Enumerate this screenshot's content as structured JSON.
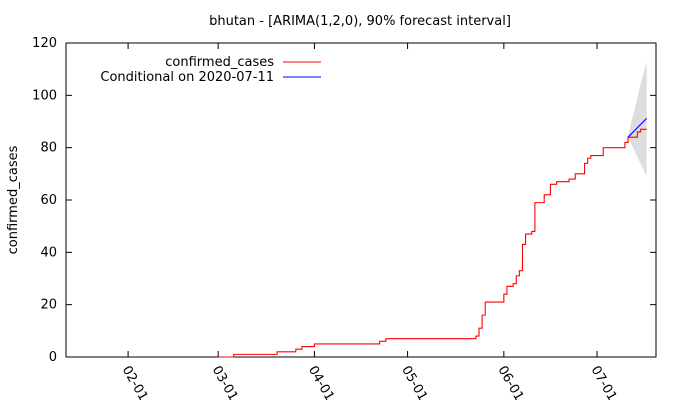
{
  "chart_data": {
    "type": "line",
    "title": "bhutan -  [ARIMA(1,2,0), 90% forecast interval]",
    "xlabel": "",
    "ylabel": "confirmed_cases",
    "ylim": [
      0,
      120
    ],
    "xlim": [
      "2020-01-12",
      "2020-07-20"
    ],
    "yticks": [
      0,
      20,
      40,
      60,
      80,
      100,
      120
    ],
    "xticks": [
      {
        "date": "2020-02-01",
        "label": "02-01"
      },
      {
        "date": "2020-03-01",
        "label": "03-01"
      },
      {
        "date": "2020-04-01",
        "label": "04-01"
      },
      {
        "date": "2020-05-01",
        "label": "05-01"
      },
      {
        "date": "2020-06-01",
        "label": "06-01"
      },
      {
        "date": "2020-07-01",
        "label": "07-01"
      }
    ],
    "legend": {
      "placement": "top-left"
    },
    "grid": false,
    "series": [
      {
        "name": "confirmed_cases",
        "color": "#ff0000",
        "step": true,
        "points": [
          [
            "2020-03-01",
            0
          ],
          [
            "2020-03-06",
            1
          ],
          [
            "2020-03-20",
            2
          ],
          [
            "2020-03-26",
            3
          ],
          [
            "2020-03-28",
            4
          ],
          [
            "2020-04-01",
            5
          ],
          [
            "2020-04-22",
            6
          ],
          [
            "2020-04-24",
            7
          ],
          [
            "2020-05-23",
            8
          ],
          [
            "2020-05-24",
            11
          ],
          [
            "2020-05-25",
            16
          ],
          [
            "2020-05-26",
            21
          ],
          [
            "2020-06-01",
            24
          ],
          [
            "2020-06-02",
            27
          ],
          [
            "2020-06-04",
            28
          ],
          [
            "2020-06-05",
            31
          ],
          [
            "2020-06-06",
            33
          ],
          [
            "2020-06-07",
            43
          ],
          [
            "2020-06-08",
            47
          ],
          [
            "2020-06-10",
            48
          ],
          [
            "2020-06-11",
            59
          ],
          [
            "2020-06-14",
            62
          ],
          [
            "2020-06-16",
            66
          ],
          [
            "2020-06-18",
            67
          ],
          [
            "2020-06-22",
            68
          ],
          [
            "2020-06-24",
            70
          ],
          [
            "2020-06-27",
            74
          ],
          [
            "2020-06-28",
            76
          ],
          [
            "2020-06-29",
            77
          ],
          [
            "2020-07-03",
            80
          ],
          [
            "2020-07-10",
            82
          ],
          [
            "2020-07-11",
            84
          ],
          [
            "2020-07-14",
            86
          ],
          [
            "2020-07-15",
            87
          ],
          [
            "2020-07-17",
            87
          ]
        ]
      },
      {
        "name": "Conditional on 2020-07-11",
        "color": "#0000ff",
        "points": [
          [
            "2020-07-11",
            84
          ],
          [
            "2020-07-12",
            85.2
          ],
          [
            "2020-07-13",
            86.4
          ],
          [
            "2020-07-14",
            87.6
          ],
          [
            "2020-07-15",
            88.8
          ],
          [
            "2020-07-16",
            90
          ],
          [
            "2020-07-17",
            91.2
          ]
        ],
        "interval": {
          "level": "90%",
          "color": "#dddddd",
          "points": [
            [
              "2020-07-11",
              84,
              84
            ],
            [
              "2020-07-12",
              81.5,
              89.5
            ],
            [
              "2020-07-13",
              79,
              94
            ],
            [
              "2020-07-14",
              76.5,
              99
            ],
            [
              "2020-07-15",
              74,
              104
            ],
            [
              "2020-07-16",
              71.5,
              108.5
            ],
            [
              "2020-07-17",
              69,
              113
            ]
          ]
        }
      }
    ]
  }
}
